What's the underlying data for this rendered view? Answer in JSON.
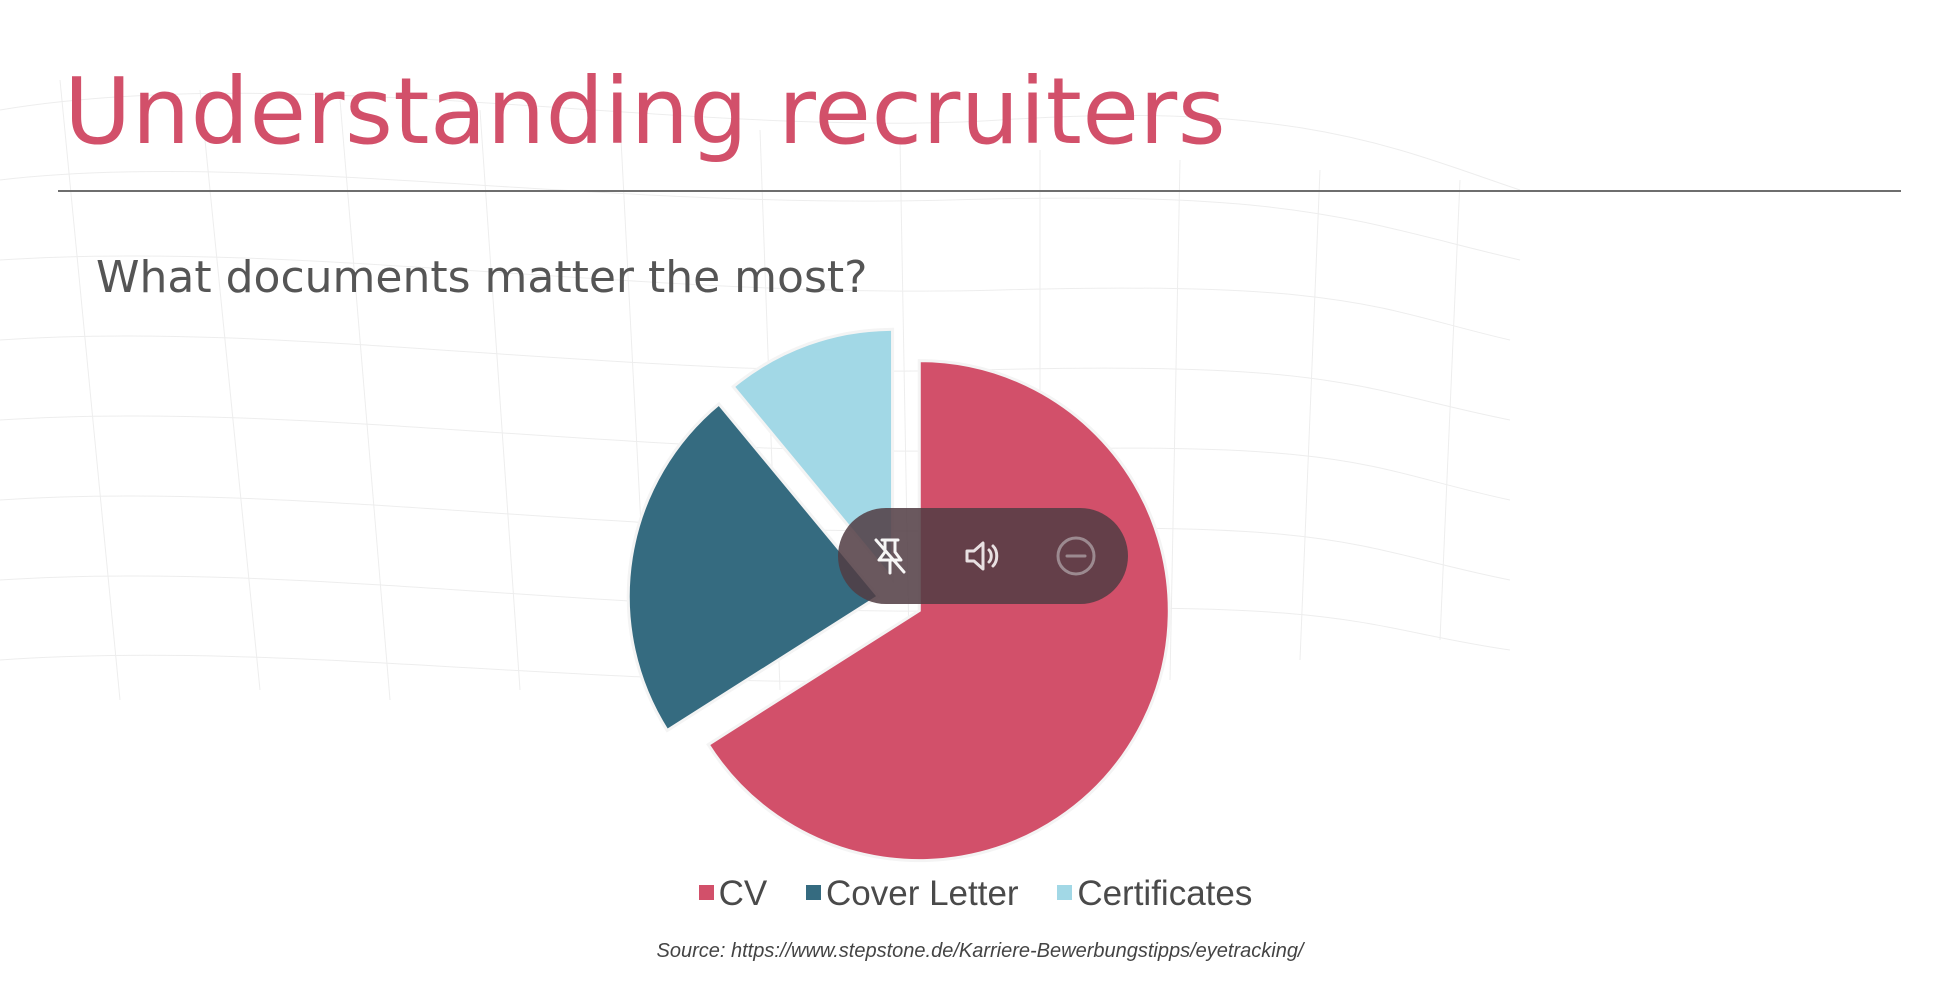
{
  "slide": {
    "title": "Understanding recruiters",
    "subtitle": "What documents matter the most?",
    "source": "Source: https://www.stepstone.de/Karriere-Bewerbungstipps/eyetracking/"
  },
  "colors": {
    "accent": "#d2506a",
    "cv": "#d2506a",
    "cover_letter": "#356b80",
    "certificates": "#a2d8e6"
  },
  "chart_data": {
    "type": "pie",
    "categories": [
      "CV",
      "Cover Letter",
      "Certificates"
    ],
    "values": [
      66,
      23,
      11
    ],
    "colors": [
      "#d2506a",
      "#356b80",
      "#a2d8e6"
    ],
    "exploded": true,
    "legend_position": "bottom"
  },
  "media_toolbar": {
    "icons": [
      "unpin-icon",
      "volume-icon",
      "minimize-icon"
    ]
  }
}
